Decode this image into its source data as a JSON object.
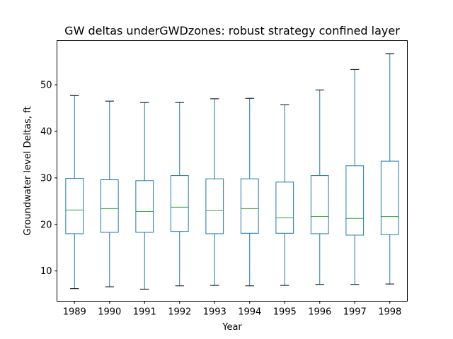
{
  "chart_data": {
    "type": "boxplot",
    "title": "GW deltas underGWDzones: robust strategy confined layer",
    "xlabel": "Year",
    "ylabel": "Groundwater level Deltas, ft",
    "ylim": [
      3.5,
      59.5
    ],
    "yticks": [
      10,
      20,
      30,
      40,
      50
    ],
    "grid": false,
    "colors": {
      "box": "#1f77b4",
      "median": "#2ca02c",
      "whisker_cap": "#000000",
      "axis": "#000000"
    },
    "categories": [
      "1989",
      "1990",
      "1991",
      "1992",
      "1993",
      "1994",
      "1995",
      "1996",
      "1997",
      "1998"
    ],
    "boxes": [
      {
        "min": 6.2,
        "q1": 18.0,
        "median": 23.1,
        "q3": 29.9,
        "max": 47.7
      },
      {
        "min": 6.6,
        "q1": 18.3,
        "median": 23.4,
        "q3": 29.6,
        "max": 46.5
      },
      {
        "min": 6.1,
        "q1": 18.3,
        "median": 22.8,
        "q3": 29.4,
        "max": 46.2
      },
      {
        "min": 6.8,
        "q1": 18.5,
        "median": 23.7,
        "q3": 30.5,
        "max": 46.2
      },
      {
        "min": 6.9,
        "q1": 18.0,
        "median": 23.0,
        "q3": 29.8,
        "max": 47.0
      },
      {
        "min": 6.8,
        "q1": 18.1,
        "median": 23.4,
        "q3": 29.8,
        "max": 47.1
      },
      {
        "min": 6.9,
        "q1": 18.1,
        "median": 21.4,
        "q3": 29.1,
        "max": 45.7
      },
      {
        "min": 7.1,
        "q1": 18.0,
        "median": 21.7,
        "q3": 30.5,
        "max": 48.9
      },
      {
        "min": 7.1,
        "q1": 17.7,
        "median": 21.3,
        "q3": 32.6,
        "max": 53.3
      },
      {
        "min": 7.2,
        "q1": 17.8,
        "median": 21.7,
        "q3": 33.6,
        "max": 56.7
      }
    ]
  }
}
